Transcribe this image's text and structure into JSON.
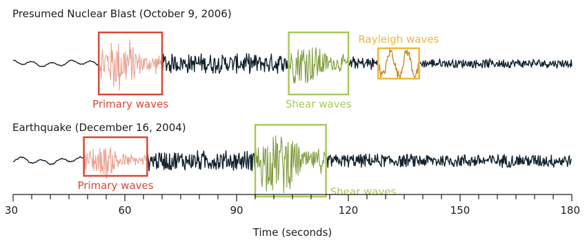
{
  "chart_data": {
    "type": "line",
    "xlabel": "Time (seconds)",
    "ylabel": "",
    "xlim": [
      30,
      180
    ],
    "xticks": [
      30,
      60,
      90,
      120,
      150,
      180
    ],
    "grid": false,
    "colors": {
      "trace": "#12232e",
      "primary": "#d94735",
      "primary_fill": "#e8a090",
      "shear": "#a8c95a",
      "shear_fill": "#7f9a3a",
      "rayleigh": "#f0b53a",
      "rayleigh_fill": "#c98a2a"
    },
    "panels": [
      {
        "id": "blast",
        "title": "Presumed Nuclear Blast (October 9, 2006)",
        "phases": [
          {
            "name": "Primary waves",
            "start": 53,
            "end": 70,
            "color": "primary",
            "label_position": "below"
          },
          {
            "name": "Shear waves",
            "start": 104,
            "end": 120,
            "color": "shear",
            "label_position": "below"
          },
          {
            "name": "Rayleigh waves",
            "start": 128,
            "end": 139,
            "color": "rayleigh",
            "label_position": "above"
          }
        ],
        "segments": [
          {
            "start": 30,
            "end": 53,
            "amp": 0.1,
            "color": "trace",
            "kind": "quiet"
          },
          {
            "start": 53,
            "end": 70,
            "amp": 1.0,
            "color": "primary_fill",
            "kind": "burst"
          },
          {
            "start": 70,
            "end": 104,
            "amp": 0.32,
            "color": "trace",
            "kind": "noise"
          },
          {
            "start": 104,
            "end": 120,
            "amp": 0.85,
            "color": "shear_fill",
            "kind": "burst"
          },
          {
            "start": 120,
            "end": 128,
            "amp": 0.22,
            "color": "trace",
            "kind": "noise"
          },
          {
            "start": 128,
            "end": 139,
            "amp": 0.45,
            "color": "rayleigh_fill",
            "kind": "wave"
          },
          {
            "start": 139,
            "end": 180,
            "amp": 0.15,
            "color": "trace",
            "kind": "noise"
          }
        ]
      },
      {
        "id": "quake",
        "title": "Earthquake (December 16, 2004)",
        "phases": [
          {
            "name": "Primary waves",
            "start": 49,
            "end": 66,
            "color": "primary",
            "label_position": "below"
          },
          {
            "name": "Shear waves",
            "start": 95,
            "end": 114,
            "color": "shear",
            "label_position": "right"
          }
        ],
        "segments": [
          {
            "start": 30,
            "end": 49,
            "amp": 0.1,
            "color": "trace",
            "kind": "quiet"
          },
          {
            "start": 49,
            "end": 66,
            "amp": 0.55,
            "color": "primary_fill",
            "kind": "burst"
          },
          {
            "start": 66,
            "end": 95,
            "amp": 0.3,
            "color": "trace",
            "kind": "noise"
          },
          {
            "start": 95,
            "end": 114,
            "amp": 1.0,
            "color": "shear_fill",
            "kind": "burst"
          },
          {
            "start": 114,
            "end": 180,
            "amp": 0.2,
            "color": "trace",
            "kind": "noise"
          }
        ]
      }
    ]
  }
}
